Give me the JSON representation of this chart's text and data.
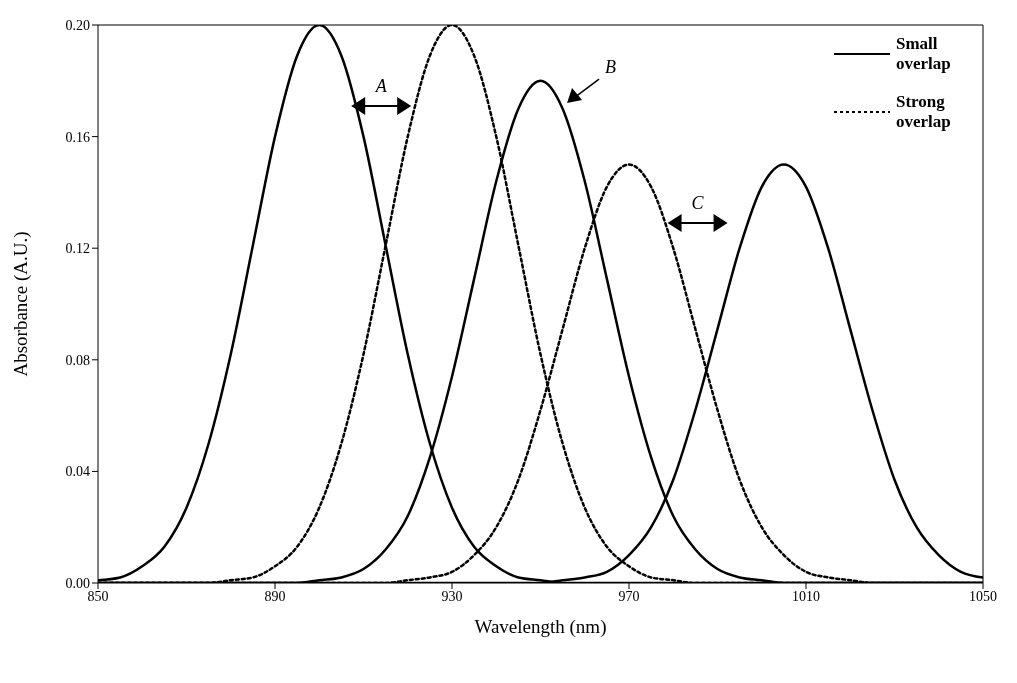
{
  "chart_data": {
    "type": "line",
    "xlabel": "Wavelength (nm)",
    "ylabel": "Absorbance (A.U.)",
    "x": [
      850,
      855,
      860,
      865,
      870,
      875,
      880,
      885,
      890,
      895,
      900,
      905,
      910,
      915,
      920,
      925,
      930,
      935,
      940,
      945,
      950,
      955,
      960,
      965,
      970,
      975,
      980,
      985,
      990,
      995,
      1000,
      1005,
      1010,
      1015,
      1020,
      1025,
      1030,
      1035,
      1040,
      1045,
      1050
    ],
    "series": [
      {
        "name": "Small overlap",
        "color": "#000000",
        "line_style": "solid",
        "values": [
          0.001,
          0.002,
          0.006,
          0.013,
          0.027,
          0.05,
          0.082,
          0.121,
          0.16,
          0.189,
          0.2,
          0.189,
          0.16,
          0.121,
          0.082,
          0.05,
          0.027,
          0.013,
          0.006,
          0.002,
          0.001,
          0,
          0,
          0,
          0,
          0,
          0,
          0,
          0,
          0,
          0,
          0,
          0,
          0,
          0,
          0,
          0,
          0,
          0,
          0,
          0
        ]
      },
      {
        "name": "Strong overlap",
        "color": "#000000",
        "line_style": "dotted",
        "values": [
          0,
          0,
          0,
          0,
          0,
          0,
          0.001,
          0.002,
          0.006,
          0.013,
          0.027,
          0.05,
          0.082,
          0.121,
          0.16,
          0.189,
          0.2,
          0.189,
          0.16,
          0.121,
          0.082,
          0.05,
          0.027,
          0.013,
          0.006,
          0.002,
          0.001,
          0,
          0,
          0,
          0,
          0,
          0,
          0,
          0,
          0,
          0,
          0,
          0,
          0,
          0
        ]
      },
      {
        "color": "#000000",
        "line_style": "solid",
        "values": [
          0,
          0,
          0,
          0,
          0,
          0,
          0,
          0,
          0,
          0,
          0.001,
          0.002,
          0.005,
          0.012,
          0.024,
          0.045,
          0.074,
          0.109,
          0.144,
          0.17,
          0.18,
          0.17,
          0.144,
          0.109,
          0.074,
          0.045,
          0.024,
          0.012,
          0.005,
          0.002,
          0.001,
          0,
          0,
          0,
          0,
          0,
          0,
          0,
          0,
          0,
          0
        ]
      },
      {
        "color": "#000000",
        "line_style": "dotted",
        "values": [
          0,
          0,
          0,
          0,
          0,
          0,
          0,
          0,
          0,
          0,
          0,
          0,
          0,
          0,
          0.001,
          0.002,
          0.004,
          0.01,
          0.02,
          0.037,
          0.062,
          0.091,
          0.12,
          0.142,
          0.15,
          0.142,
          0.12,
          0.091,
          0.062,
          0.037,
          0.02,
          0.01,
          0.004,
          0.002,
          0.001,
          0,
          0,
          0,
          0,
          0,
          0
        ]
      },
      {
        "color": "#000000",
        "line_style": "solid",
        "values": [
          0,
          0,
          0,
          0,
          0,
          0,
          0,
          0,
          0,
          0,
          0,
          0,
          0,
          0,
          0,
          0,
          0,
          0,
          0,
          0,
          0,
          0.001,
          0.002,
          0.004,
          0.01,
          0.02,
          0.037,
          0.062,
          0.091,
          0.12,
          0.142,
          0.15,
          0.142,
          0.12,
          0.091,
          0.062,
          0.037,
          0.02,
          0.01,
          0.004,
          0.002
        ]
      }
    ],
    "xlim": [
      850,
      1050
    ],
    "xticks": [
      850,
      890,
      930,
      970,
      1010,
      1050
    ],
    "ylim": [
      0,
      0.2
    ],
    "yticks": [
      {
        "value": 0,
        "label": "0.00"
      },
      {
        "value": 0.04,
        "label": "0.04"
      },
      {
        "value": 0.08,
        "label": "0.08"
      },
      {
        "value": 0.12,
        "label": "0.12"
      },
      {
        "value": 0.16,
        "label": "0.16"
      },
      {
        "value": 0.2,
        "label": "0.20"
      }
    ],
    "grid": false,
    "legend": "top right",
    "marker": "none",
    "annotations": [
      "A",
      "B",
      "C"
    ]
  }
}
